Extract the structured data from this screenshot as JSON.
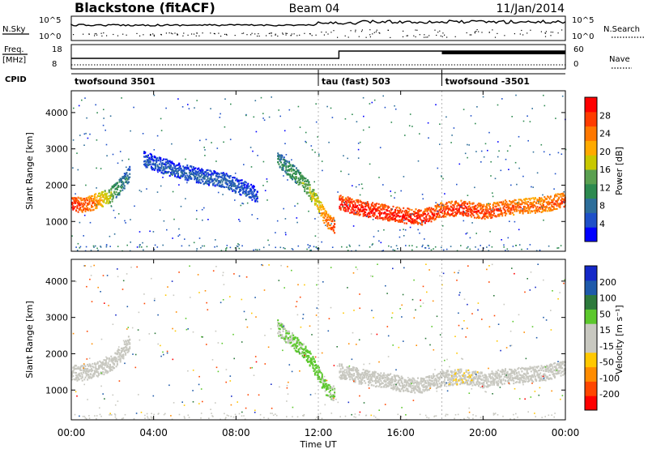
{
  "header": {
    "station": "Blackstone (fitACF)",
    "beam": "Beam 04",
    "date": "11/Jan/2014"
  },
  "top_panels": {
    "nsky_label": "N.Sky",
    "nsky_ticks": [
      "10^5",
      "10^0"
    ],
    "nsearch_label": "N.Search",
    "nsearch_ticks": [
      "10^5",
      "10^0"
    ],
    "freq_label": "Freq.",
    "freq_unit": "[MHz]",
    "freq_ticks": [
      "18",
      "8"
    ],
    "nave_label": "Nave",
    "nave_ticks": [
      "60",
      "0"
    ],
    "cpid_label": "CPID"
  },
  "cpid_segments": [
    {
      "label": "twofsound 3501",
      "start_hour": 0
    },
    {
      "label": "tau (fast) 503",
      "start_hour": 12
    },
    {
      "label": "twofsound -3501",
      "start_hour": 18
    }
  ],
  "time_axis": {
    "ticks": [
      "00:00",
      "04:00",
      "08:00",
      "12:00",
      "16:00",
      "20:00",
      "00:00"
    ],
    "label": "Time UT"
  },
  "range_axis": {
    "label": "Slant Range [km]",
    "ticks": [
      "1000",
      "2000",
      "3000",
      "4000"
    ]
  },
  "power_scale": {
    "label": "Power [dB]",
    "ticks": [
      "4",
      "8",
      "12",
      "16",
      "20",
      "24",
      "28"
    ],
    "colors": [
      "#0000ff",
      "#1e50c8",
      "#2d6e9a",
      "#2d8a50",
      "#5aa050",
      "#c8c800",
      "#ffaa00",
      "#ff7800",
      "#ff3c00",
      "#ff0000"
    ]
  },
  "velocity_scale": {
    "label": "Velocity [m s⁻¹]",
    "ticks": [
      "200",
      "100",
      "50",
      "15",
      "-15",
      "-50",
      "-100",
      "-200"
    ],
    "colors": [
      "#1428c8",
      "#1e5aaa",
      "#2d7a3c",
      "#5cc82d",
      "#c8c8c0",
      "#c8c8c0",
      "#ffc800",
      "#ff8c00",
      "#ff4600",
      "#ff0000"
    ]
  },
  "chart_data": [
    {
      "type": "heatmap",
      "title": "Power",
      "xlabel": "Time UT",
      "ylabel": "Slant Range [km]",
      "xlim": [
        0,
        24
      ],
      "ylim": [
        180,
        4600
      ],
      "colorbar": {
        "label": "Power [dB]",
        "range": [
          0,
          30
        ]
      },
      "bands": [
        {
          "t": [
            0.0,
            0.5,
            1.0,
            1.5,
            2.0,
            2.5,
            2.8
          ],
          "range_km": [
            1450,
            1450,
            1500,
            1600,
            1750,
            2050,
            2300
          ],
          "power_db": [
            28,
            26,
            24,
            20,
            14,
            10,
            8
          ]
        },
        {
          "t": [
            3.5,
            5.0,
            6.5,
            7.5,
            8.5,
            9.0
          ],
          "range_km": [
            2700,
            2400,
            2200,
            2100,
            1850,
            1700
          ],
          "power_db": [
            6,
            6,
            7,
            7,
            6,
            5
          ]
        },
        {
          "t": [
            10.0,
            10.8,
            11.5,
            12.0,
            12.4,
            12.8
          ],
          "range_km": [
            2700,
            2300,
            1900,
            1400,
            1000,
            850
          ],
          "power_db": [
            10,
            12,
            16,
            20,
            24,
            28
          ]
        },
        {
          "t": [
            13.0,
            14.0,
            15.0,
            16.0,
            17.0,
            18.0,
            19.0,
            20.0,
            21.0,
            22.0,
            23.0,
            24.0
          ],
          "range_km": [
            1500,
            1350,
            1250,
            1150,
            1100,
            1300,
            1350,
            1250,
            1350,
            1400,
            1450,
            1600
          ],
          "power_db": [
            28,
            28,
            28,
            28,
            28,
            26,
            28,
            26,
            26,
            24,
            24,
            26
          ]
        }
      ]
    },
    {
      "type": "heatmap",
      "title": "Velocity",
      "xlabel": "Time UT",
      "ylabel": "Slant Range [km]",
      "xlim": [
        0,
        24
      ],
      "ylim": [
        180,
        4600
      ],
      "colorbar": {
        "label": "Velocity [m s⁻¹]",
        "range": [
          -200,
          200
        ]
      },
      "bands": [
        {
          "t": [
            0.0,
            0.5,
            1.0,
            1.5,
            2.0,
            2.5,
            2.8
          ],
          "range_km": [
            1450,
            1450,
            1500,
            1600,
            1750,
            2050,
            2300
          ],
          "velocity_ms": [
            0,
            0,
            0,
            0,
            0,
            0,
            0
          ]
        },
        {
          "t": [
            10.0,
            10.8,
            11.5,
            12.0,
            12.4,
            12.8
          ],
          "range_km": [
            2700,
            2300,
            1900,
            1400,
            1000,
            850
          ],
          "velocity_ms": [
            30,
            50,
            60,
            60,
            50,
            40
          ]
        },
        {
          "t": [
            13.0,
            14.0,
            15.0,
            16.0,
            17.0,
            18.0,
            19.0,
            20.0,
            21.0,
            22.0,
            23.0,
            24.0
          ],
          "range_km": [
            1500,
            1350,
            1250,
            1150,
            1100,
            1300,
            1350,
            1250,
            1350,
            1400,
            1450,
            1600
          ],
          "velocity_ms": [
            0,
            0,
            0,
            0,
            0,
            -20,
            -30,
            -20,
            0,
            0,
            0,
            0
          ]
        }
      ]
    }
  ]
}
